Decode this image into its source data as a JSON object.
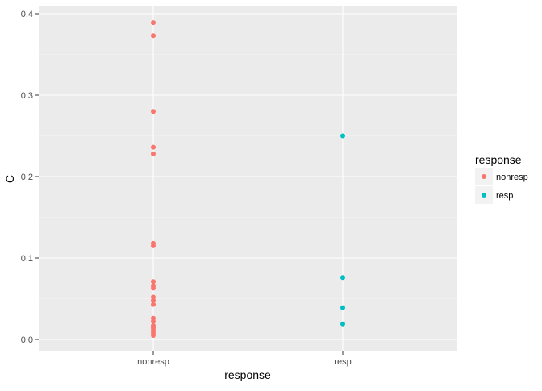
{
  "chart_data": {
    "type": "scatter",
    "title": "",
    "xlabel": "response",
    "ylabel": "C",
    "categories": [
      "nonresp",
      "resp"
    ],
    "ylim": [
      -0.02,
      0.405
    ],
    "yticks": [
      0.0,
      0.1,
      0.2,
      0.3,
      0.4
    ],
    "ytick_labels": [
      "0.0",
      "0.1",
      "0.2",
      "0.3",
      "0.4"
    ],
    "grid": true,
    "legend": {
      "title": "response",
      "position": "right",
      "entries": [
        "nonresp",
        "resp"
      ]
    },
    "series": [
      {
        "name": "nonresp",
        "color": "#F8766D",
        "x": "nonresp",
        "values": [
          0.389,
          0.373,
          0.28,
          0.236,
          0.228,
          0.118,
          0.115,
          0.071,
          0.066,
          0.063,
          0.052,
          0.048,
          0.043,
          0.026,
          0.022,
          0.017,
          0.014,
          0.011,
          0.008,
          0.005
        ]
      },
      {
        "name": "resp",
        "color": "#00BFC4",
        "x": "resp",
        "values": [
          0.25,
          0.076,
          0.039,
          0.019
        ]
      }
    ]
  }
}
